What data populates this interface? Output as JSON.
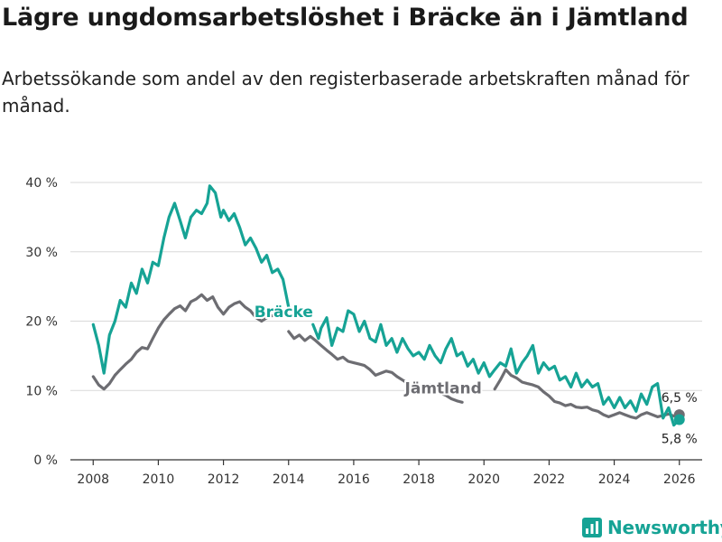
{
  "title": "Lägre ungdomsarbetslöshet i Bräcke än i Jämtland",
  "subtitle": "Arbetssökande som andel av den registerbaserade arbetskraften månad för månad.",
  "brand": {
    "name": "Newsworthy",
    "icon": "chart-logo-icon"
  },
  "colors": {
    "bracke": "#16a395",
    "jamtland": "#6d6d72",
    "grid": "#d9d9d9",
    "axis": "#333333"
  },
  "chart_data": {
    "type": "line",
    "title": "Lägre ungdomsarbetslöshet i Bräcke än i Jämtland",
    "xlabel": "",
    "ylabel": "",
    "xlim": [
      2007.3,
      2026.7
    ],
    "ylim": [
      0,
      40
    ],
    "yticks": [
      0,
      10,
      20,
      30,
      40
    ],
    "ytick_labels": [
      "0 %",
      "10 %",
      "20 %",
      "30 %",
      "40 %"
    ],
    "xticks": [
      2008,
      2010,
      2012,
      2014,
      2016,
      2018,
      2020,
      2022,
      2024,
      2026
    ],
    "xtick_labels": [
      "2008",
      "2010",
      "2012",
      "2014",
      "2016",
      "2018",
      "2020",
      "2022",
      "2024",
      "2026"
    ],
    "grid": true,
    "series": [
      {
        "name": "Bräcke",
        "label_x": 2013.85,
        "label_y": 20.6,
        "end_value": 5.8,
        "end_label": "5,8 %",
        "points": [
          [
            2008.0,
            19.5
          ],
          [
            2008.17,
            16.5
          ],
          [
            2008.33,
            12.5
          ],
          [
            2008.5,
            18
          ],
          [
            2008.67,
            20
          ],
          [
            2008.83,
            23
          ],
          [
            2009.0,
            22
          ],
          [
            2009.17,
            25.5
          ],
          [
            2009.33,
            24
          ],
          [
            2009.5,
            27.5
          ],
          [
            2009.67,
            25.5
          ],
          [
            2009.83,
            28.5
          ],
          [
            2010.0,
            28
          ],
          [
            2010.17,
            32
          ],
          [
            2010.33,
            35
          ],
          [
            2010.5,
            37
          ],
          [
            2010.67,
            34.5
          ],
          [
            2010.83,
            32
          ],
          [
            2011.0,
            35
          ],
          [
            2011.17,
            36
          ],
          [
            2011.33,
            35.5
          ],
          [
            2011.5,
            37
          ],
          [
            2011.58,
            39.5
          ],
          [
            2011.75,
            38.5
          ],
          [
            2011.92,
            35
          ],
          [
            2012.0,
            36
          ],
          [
            2012.17,
            34.5
          ],
          [
            2012.33,
            35.5
          ],
          [
            2012.5,
            33.5
          ],
          [
            2012.67,
            31
          ],
          [
            2012.83,
            32
          ],
          [
            2013.0,
            30.5
          ],
          [
            2013.17,
            28.5
          ],
          [
            2013.33,
            29.5
          ],
          [
            2013.5,
            27
          ],
          [
            2013.67,
            27.5
          ],
          [
            2013.83,
            26
          ],
          [
            2014.0,
            22
          ],
          [
            2014.75,
            19.5
          ],
          [
            2014.92,
            17.5
          ],
          [
            2015.0,
            19
          ],
          [
            2015.17,
            20.5
          ],
          [
            2015.33,
            16.5
          ],
          [
            2015.5,
            19
          ],
          [
            2015.67,
            18.5
          ],
          [
            2015.83,
            21.5
          ],
          [
            2016.0,
            21
          ],
          [
            2016.17,
            18.5
          ],
          [
            2016.33,
            20
          ],
          [
            2016.5,
            17.5
          ],
          [
            2016.67,
            17
          ],
          [
            2016.83,
            19.5
          ],
          [
            2017.0,
            16.5
          ],
          [
            2017.17,
            17.5
          ],
          [
            2017.33,
            15.5
          ],
          [
            2017.5,
            17.5
          ],
          [
            2017.67,
            16
          ],
          [
            2017.83,
            15
          ],
          [
            2018.0,
            15.5
          ],
          [
            2018.17,
            14.5
          ],
          [
            2018.33,
            16.5
          ],
          [
            2018.5,
            15
          ],
          [
            2018.67,
            14
          ],
          [
            2018.83,
            16
          ],
          [
            2019.0,
            17.5
          ],
          [
            2019.17,
            15
          ],
          [
            2019.33,
            15.5
          ],
          [
            2019.5,
            13.5
          ],
          [
            2019.67,
            14.5
          ],
          [
            2019.83,
            12.5
          ],
          [
            2020.0,
            14
          ],
          [
            2020.17,
            12
          ],
          [
            2020.33,
            13
          ],
          [
            2020.5,
            14
          ],
          [
            2020.67,
            13.5
          ],
          [
            2020.83,
            16
          ],
          [
            2021.0,
            12.5
          ],
          [
            2021.17,
            14
          ],
          [
            2021.33,
            15
          ],
          [
            2021.5,
            16.5
          ],
          [
            2021.67,
            12.5
          ],
          [
            2021.83,
            14
          ],
          [
            2022.0,
            13
          ],
          [
            2022.17,
            13.5
          ],
          [
            2022.33,
            11.5
          ],
          [
            2022.5,
            12
          ],
          [
            2022.67,
            10.5
          ],
          [
            2022.83,
            12.5
          ],
          [
            2023.0,
            10.5
          ],
          [
            2023.17,
            11.5
          ],
          [
            2023.33,
            10.5
          ],
          [
            2023.5,
            11
          ],
          [
            2023.67,
            8
          ],
          [
            2023.83,
            9
          ],
          [
            2024.0,
            7.5
          ],
          [
            2024.17,
            9
          ],
          [
            2024.33,
            7.5
          ],
          [
            2024.5,
            8.5
          ],
          [
            2024.67,
            7
          ],
          [
            2024.83,
            9.5
          ],
          [
            2025.0,
            8
          ],
          [
            2025.17,
            10.5
          ],
          [
            2025.33,
            11
          ],
          [
            2025.5,
            6
          ],
          [
            2025.67,
            7.5
          ],
          [
            2025.83,
            5
          ],
          [
            2026.0,
            5.8
          ]
        ]
      },
      {
        "name": "Jämtland",
        "label_x": 2018.75,
        "label_y": 9.6,
        "end_value": 6.5,
        "end_label": "6,5 %",
        "points": [
          [
            2008.0,
            12
          ],
          [
            2008.17,
            10.8
          ],
          [
            2008.33,
            10.2
          ],
          [
            2008.5,
            11
          ],
          [
            2008.67,
            12.2
          ],
          [
            2008.83,
            13
          ],
          [
            2009.0,
            13.8
          ],
          [
            2009.17,
            14.5
          ],
          [
            2009.33,
            15.5
          ],
          [
            2009.5,
            16.2
          ],
          [
            2009.67,
            16
          ],
          [
            2009.83,
            17.5
          ],
          [
            2010.0,
            19
          ],
          [
            2010.17,
            20.2
          ],
          [
            2010.33,
            21
          ],
          [
            2010.5,
            21.8
          ],
          [
            2010.67,
            22.2
          ],
          [
            2010.83,
            21.5
          ],
          [
            2011.0,
            22.8
          ],
          [
            2011.17,
            23.2
          ],
          [
            2011.33,
            23.8
          ],
          [
            2011.5,
            23
          ],
          [
            2011.67,
            23.5
          ],
          [
            2011.83,
            22
          ],
          [
            2012.0,
            21
          ],
          [
            2012.17,
            22
          ],
          [
            2012.33,
            22.5
          ],
          [
            2012.5,
            22.8
          ],
          [
            2012.67,
            22
          ],
          [
            2012.83,
            21.5
          ],
          [
            2013.0,
            20.5
          ],
          [
            2013.17,
            20
          ],
          [
            2013.33,
            20.5
          ],
          [
            2013.5,
            20.8
          ],
          [
            2014.0,
            18.5
          ],
          [
            2014.17,
            17.5
          ],
          [
            2014.33,
            18
          ],
          [
            2014.5,
            17.2
          ],
          [
            2014.67,
            17.8
          ],
          [
            2014.83,
            17.2
          ],
          [
            2015.0,
            16.5
          ],
          [
            2015.17,
            15.8
          ],
          [
            2015.33,
            15.2
          ],
          [
            2015.5,
            14.5
          ],
          [
            2015.67,
            14.8
          ],
          [
            2015.83,
            14.2
          ],
          [
            2016.0,
            14
          ],
          [
            2016.17,
            13.8
          ],
          [
            2016.33,
            13.6
          ],
          [
            2016.5,
            13
          ],
          [
            2016.67,
            12.2
          ],
          [
            2016.83,
            12.5
          ],
          [
            2017.0,
            12.8
          ],
          [
            2017.17,
            12.6
          ],
          [
            2017.33,
            12
          ],
          [
            2017.5,
            11.5
          ],
          [
            2017.67,
            11
          ],
          [
            2017.83,
            10.5
          ],
          [
            2018.0,
            10.2
          ],
          [
            2018.17,
            10.5
          ],
          [
            2018.33,
            10.8
          ],
          [
            2018.5,
            10.2
          ],
          [
            2018.67,
            9.6
          ],
          [
            2018.83,
            9.3
          ],
          [
            2019.0,
            8.8
          ],
          [
            2019.17,
            8.5
          ],
          [
            2019.33,
            8.3
          ],
          [
            2020.33,
            10.2
          ],
          [
            2020.5,
            11.5
          ],
          [
            2020.67,
            13
          ],
          [
            2020.83,
            12.2
          ],
          [
            2021.0,
            11.8
          ],
          [
            2021.17,
            11.2
          ],
          [
            2021.33,
            11
          ],
          [
            2021.5,
            10.8
          ],
          [
            2021.67,
            10.5
          ],
          [
            2021.83,
            9.8
          ],
          [
            2022.0,
            9.2
          ],
          [
            2022.17,
            8.4
          ],
          [
            2022.33,
            8.2
          ],
          [
            2022.5,
            7.8
          ],
          [
            2022.67,
            8
          ],
          [
            2022.83,
            7.6
          ],
          [
            2023.0,
            7.5
          ],
          [
            2023.17,
            7.6
          ],
          [
            2023.33,
            7.2
          ],
          [
            2023.5,
            7
          ],
          [
            2023.67,
            6.5
          ],
          [
            2023.83,
            6.2
          ],
          [
            2024.0,
            6.5
          ],
          [
            2024.17,
            6.8
          ],
          [
            2024.33,
            6.5
          ],
          [
            2024.5,
            6.2
          ],
          [
            2024.67,
            6
          ],
          [
            2024.83,
            6.5
          ],
          [
            2025.0,
            6.8
          ],
          [
            2025.17,
            6.5
          ],
          [
            2025.33,
            6.2
          ],
          [
            2025.5,
            6.4
          ],
          [
            2025.67,
            6.6
          ],
          [
            2025.83,
            6.3
          ],
          [
            2026.0,
            6.5
          ]
        ]
      }
    ]
  }
}
